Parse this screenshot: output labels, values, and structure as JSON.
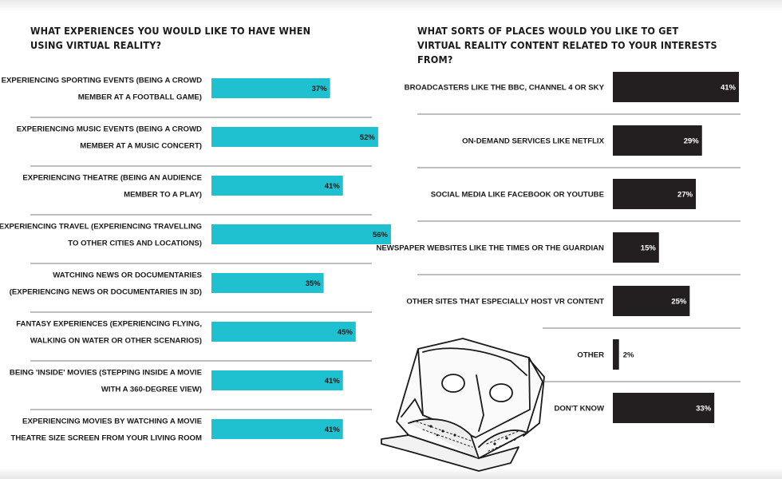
{
  "chart_data": [
    {
      "type": "bar",
      "orientation": "horizontal",
      "title": "WHAT EXPERIENCES YOU WOULD LIKE TO HAVE WHEN USING VIRTUAL REALITY?",
      "categories": [
        [
          "EXPERIENCING SPORTING EVENTS (BEING A CROWD",
          "MEMBER AT A FOOTBALL GAME)"
        ],
        [
          "EXPERIENCING MUSIC EVENTS (BEING A CROWD",
          "MEMBER AT A MUSIC CONCERT)"
        ],
        [
          "EXPERIENCING THEATRE (BEING AN AUDIENCE",
          "MEMBER TO A PLAY)"
        ],
        [
          "EXPERIENCING TRAVEL (EXPERIENCING TRAVELLING",
          "TO OTHER CITIES AND LOCATIONS)"
        ],
        [
          "WATCHING NEWS OR DOCUMENTARIES",
          "(EXPERIENCING NEWS OR DOCUMENTARIES IN 3D)"
        ],
        [
          "FANTASY EXPERIENCES (EXPERIENCING FLYING,",
          "WALKING ON WATER OR OTHER SCENARIOS)"
        ],
        [
          "BEING 'INSIDE' MOVIES (STEPPING INSIDE A MOVIE",
          "WITH A 360-DEGREE VIEW)"
        ],
        [
          "EXPERIENCING MOVIES BY WATCHING A MOVIE",
          "THEATRE SIZE SCREEN FROM YOUR LIVING ROOM"
        ]
      ],
      "values": [
        37,
        52,
        41,
        56,
        35,
        45,
        41,
        41
      ],
      "value_labels": [
        "37%",
        "52%",
        "41%",
        "56%",
        "35%",
        "45%",
        "41%",
        "41%"
      ],
      "xlim": [
        0,
        56
      ],
      "bar_color": "#1fc1d1",
      "value_color": "#1a1a1a"
    },
    {
      "type": "bar",
      "orientation": "horizontal",
      "title": "WHAT SORTS OF PLACES WOULD YOU LIKE TO GET VIRTUAL REALITY CONTENT RELATED TO YOUR INTERESTS FROM?",
      "categories": [
        [
          "BROADCASTERS LIKE THE BBC, CHANNEL 4 OR SKY"
        ],
        [
          "ON-DEMAND SERVICES LIKE NETFLIX"
        ],
        [
          "SOCIAL MEDIA LIKE FACEBOOK OR YOUTUBE"
        ],
        [
          "NEWSPAPER WEBSITES LIKE THE TIMES OR THE GUARDIAN"
        ],
        [
          "OTHER SITES THAT ESPECIALLY HOST VR CONTENT"
        ],
        [
          "OTHER"
        ],
        [
          "DON'T KNOW"
        ]
      ],
      "values": [
        41,
        29,
        27,
        15,
        25,
        2,
        33
      ],
      "value_labels": [
        "41%",
        "29%",
        "27%",
        "15%",
        "25%",
        "2%",
        "33%"
      ],
      "xlim": [
        0,
        41
      ],
      "bar_color": "#231f20",
      "value_color": "#ffffff"
    }
  ]
}
